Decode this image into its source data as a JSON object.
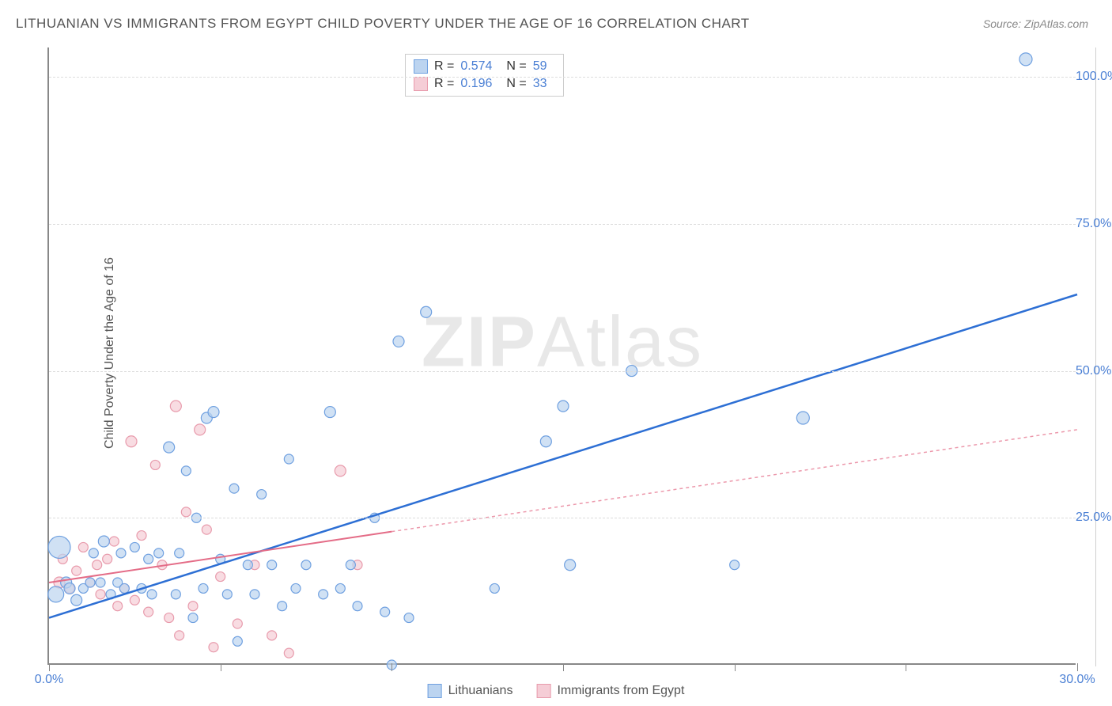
{
  "title": "LITHUANIAN VS IMMIGRANTS FROM EGYPT CHILD POVERTY UNDER THE AGE OF 16 CORRELATION CHART",
  "source": "Source: ZipAtlas.com",
  "ylabel": "Child Poverty Under the Age of 16",
  "watermark": {
    "bold": "ZIP",
    "rest": "Atlas"
  },
  "chart": {
    "type": "scatter-correlation",
    "background_color": "#ffffff",
    "grid_color": "#dddddd",
    "axis_color": "#888888",
    "xlim": [
      0,
      30
    ],
    "ylim": [
      0,
      105
    ],
    "xticks": [
      0,
      5,
      10,
      15,
      20,
      25,
      30
    ],
    "xtick_labels": [
      "0.0%",
      "",
      "",
      "",
      "",
      "",
      "30.0%"
    ],
    "yticks": [
      25,
      50,
      75,
      100
    ],
    "ytick_labels": [
      "25.0%",
      "50.0%",
      "75.0%",
      "100.0%"
    ],
    "tick_label_color": "#4a7fd4",
    "tick_label_fontsize": 16
  },
  "series": [
    {
      "name": "Lithuanians",
      "marker_fill": "#bcd4f0",
      "marker_stroke": "#6fa0e0",
      "line_color": "#2d6fd4",
      "line_width": 2.5,
      "line_dash": "none",
      "R_label": "R =",
      "R": "0.574",
      "N_label": "N =",
      "N": "59",
      "regression": {
        "x1": 0,
        "y1": 8,
        "x2": 30,
        "y2": 63
      },
      "points": [
        {
          "x": 0.2,
          "y": 12,
          "r": 10
        },
        {
          "x": 0.3,
          "y": 20,
          "r": 14
        },
        {
          "x": 0.5,
          "y": 14,
          "r": 7
        },
        {
          "x": 0.6,
          "y": 13,
          "r": 7
        },
        {
          "x": 0.8,
          "y": 11,
          "r": 7
        },
        {
          "x": 1.0,
          "y": 13,
          "r": 6
        },
        {
          "x": 1.2,
          "y": 14,
          "r": 6
        },
        {
          "x": 1.3,
          "y": 19,
          "r": 6
        },
        {
          "x": 1.5,
          "y": 14,
          "r": 6
        },
        {
          "x": 1.6,
          "y": 21,
          "r": 7
        },
        {
          "x": 1.8,
          "y": 12,
          "r": 6
        },
        {
          "x": 2.0,
          "y": 14,
          "r": 6
        },
        {
          "x": 2.1,
          "y": 19,
          "r": 6
        },
        {
          "x": 2.2,
          "y": 13,
          "r": 6
        },
        {
          "x": 2.5,
          "y": 20,
          "r": 6
        },
        {
          "x": 2.7,
          "y": 13,
          "r": 6
        },
        {
          "x": 2.9,
          "y": 18,
          "r": 6
        },
        {
          "x": 3.0,
          "y": 12,
          "r": 6
        },
        {
          "x": 3.2,
          "y": 19,
          "r": 6
        },
        {
          "x": 3.5,
          "y": 37,
          "r": 7
        },
        {
          "x": 3.7,
          "y": 12,
          "r": 6
        },
        {
          "x": 3.8,
          "y": 19,
          "r": 6
        },
        {
          "x": 4.0,
          "y": 33,
          "r": 6
        },
        {
          "x": 4.2,
          "y": 8,
          "r": 6
        },
        {
          "x": 4.3,
          "y": 25,
          "r": 6
        },
        {
          "x": 4.5,
          "y": 13,
          "r": 6
        },
        {
          "x": 4.6,
          "y": 42,
          "r": 7
        },
        {
          "x": 4.8,
          "y": 43,
          "r": 7
        },
        {
          "x": 5.0,
          "y": 18,
          "r": 6
        },
        {
          "x": 5.2,
          "y": 12,
          "r": 6
        },
        {
          "x": 5.4,
          "y": 30,
          "r": 6
        },
        {
          "x": 5.5,
          "y": 4,
          "r": 6
        },
        {
          "x": 5.8,
          "y": 17,
          "r": 6
        },
        {
          "x": 6.0,
          "y": 12,
          "r": 6
        },
        {
          "x": 6.2,
          "y": 29,
          "r": 6
        },
        {
          "x": 6.5,
          "y": 17,
          "r": 6
        },
        {
          "x": 6.8,
          "y": 10,
          "r": 6
        },
        {
          "x": 7.0,
          "y": 35,
          "r": 6
        },
        {
          "x": 7.2,
          "y": 13,
          "r": 6
        },
        {
          "x": 7.5,
          "y": 17,
          "r": 6
        },
        {
          "x": 8.0,
          "y": 12,
          "r": 6
        },
        {
          "x": 8.2,
          "y": 43,
          "r": 7
        },
        {
          "x": 8.5,
          "y": 13,
          "r": 6
        },
        {
          "x": 8.8,
          "y": 17,
          "r": 6
        },
        {
          "x": 9.0,
          "y": 10,
          "r": 6
        },
        {
          "x": 9.5,
          "y": 25,
          "r": 6
        },
        {
          "x": 9.8,
          "y": 9,
          "r": 6
        },
        {
          "x": 10.0,
          "y": 0,
          "r": 6
        },
        {
          "x": 10.2,
          "y": 55,
          "r": 7
        },
        {
          "x": 10.5,
          "y": 8,
          "r": 6
        },
        {
          "x": 11.0,
          "y": 60,
          "r": 7
        },
        {
          "x": 13.0,
          "y": 13,
          "r": 6
        },
        {
          "x": 14.5,
          "y": 38,
          "r": 7
        },
        {
          "x": 15.0,
          "y": 44,
          "r": 7
        },
        {
          "x": 15.2,
          "y": 17,
          "r": 7
        },
        {
          "x": 17.0,
          "y": 50,
          "r": 7
        },
        {
          "x": 20.0,
          "y": 17,
          "r": 6
        },
        {
          "x": 22.0,
          "y": 42,
          "r": 8
        },
        {
          "x": 28.5,
          "y": 103,
          "r": 8
        }
      ]
    },
    {
      "name": "Immigrants from Egypt",
      "marker_fill": "#f5cdd6",
      "marker_stroke": "#e89bac",
      "line_color": "#e46c87",
      "line_width": 2,
      "line_dash_solid_end": 10,
      "line_dash": "4,4",
      "R_label": "R =",
      "R": "0.196",
      "N_label": "N =",
      "N": "33",
      "regression": {
        "x1": 0,
        "y1": 14,
        "x2": 30,
        "y2": 40
      },
      "points": [
        {
          "x": 0.3,
          "y": 14,
          "r": 7
        },
        {
          "x": 0.4,
          "y": 18,
          "r": 6
        },
        {
          "x": 0.6,
          "y": 13,
          "r": 6
        },
        {
          "x": 0.8,
          "y": 16,
          "r": 6
        },
        {
          "x": 1.0,
          "y": 20,
          "r": 6
        },
        {
          "x": 1.2,
          "y": 14,
          "r": 6
        },
        {
          "x": 1.4,
          "y": 17,
          "r": 6
        },
        {
          "x": 1.5,
          "y": 12,
          "r": 6
        },
        {
          "x": 1.7,
          "y": 18,
          "r": 6
        },
        {
          "x": 1.9,
          "y": 21,
          "r": 6
        },
        {
          "x": 2.0,
          "y": 10,
          "r": 6
        },
        {
          "x": 2.2,
          "y": 13,
          "r": 6
        },
        {
          "x": 2.4,
          "y": 38,
          "r": 7
        },
        {
          "x": 2.5,
          "y": 11,
          "r": 6
        },
        {
          "x": 2.7,
          "y": 22,
          "r": 6
        },
        {
          "x": 2.9,
          "y": 9,
          "r": 6
        },
        {
          "x": 3.1,
          "y": 34,
          "r": 6
        },
        {
          "x": 3.3,
          "y": 17,
          "r": 6
        },
        {
          "x": 3.5,
          "y": 8,
          "r": 6
        },
        {
          "x": 3.7,
          "y": 44,
          "r": 7
        },
        {
          "x": 3.8,
          "y": 5,
          "r": 6
        },
        {
          "x": 4.0,
          "y": 26,
          "r": 6
        },
        {
          "x": 4.2,
          "y": 10,
          "r": 6
        },
        {
          "x": 4.4,
          "y": 40,
          "r": 7
        },
        {
          "x": 4.6,
          "y": 23,
          "r": 6
        },
        {
          "x": 4.8,
          "y": 3,
          "r": 6
        },
        {
          "x": 5.0,
          "y": 15,
          "r": 6
        },
        {
          "x": 5.5,
          "y": 7,
          "r": 6
        },
        {
          "x": 6.0,
          "y": 17,
          "r": 6
        },
        {
          "x": 6.5,
          "y": 5,
          "r": 6
        },
        {
          "x": 7.0,
          "y": 2,
          "r": 6
        },
        {
          "x": 8.5,
          "y": 33,
          "r": 7
        },
        {
          "x": 9.0,
          "y": 17,
          "r": 6
        }
      ]
    }
  ],
  "bottom_legend": [
    {
      "label": "Lithuanians",
      "fill": "#bcd4f0",
      "stroke": "#6fa0e0"
    },
    {
      "label": "Immigrants from Egypt",
      "fill": "#f5cdd6",
      "stroke": "#e89bac"
    }
  ]
}
